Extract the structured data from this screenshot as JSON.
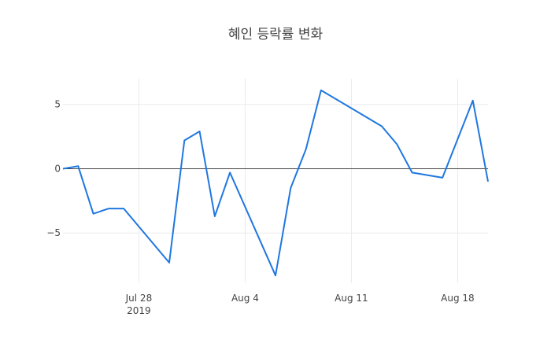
{
  "chart_data": {
    "type": "line",
    "title": "혜인 등락률 변화",
    "xlabel": "",
    "ylabel": "",
    "xlim": [
      "2019-07-23",
      "2019-08-20"
    ],
    "ylim": [
      -8.9,
      7
    ],
    "grid": true,
    "zero_line": true,
    "line_color": "#1f77e0",
    "x_ticks": [
      {
        "date": "2019-07-28",
        "label": "Jul 28",
        "sublabel": "2019"
      },
      {
        "date": "2019-08-04",
        "label": "Aug 4",
        "sublabel": ""
      },
      {
        "date": "2019-08-11",
        "label": "Aug 11",
        "sublabel": ""
      },
      {
        "date": "2019-08-18",
        "label": "Aug 18",
        "sublabel": ""
      }
    ],
    "y_ticks": [
      {
        "value": 5,
        "label": "5"
      },
      {
        "value": 0,
        "label": "0"
      },
      {
        "value": -5,
        "label": "−5"
      }
    ],
    "series": [
      {
        "x": [
          "2019-07-23",
          "2019-07-24",
          "2019-07-25",
          "2019-07-26",
          "2019-07-27",
          "2019-07-30",
          "2019-07-31",
          "2019-08-01",
          "2019-08-02",
          "2019-08-03",
          "2019-08-06",
          "2019-08-07",
          "2019-08-08",
          "2019-08-09",
          "2019-08-13",
          "2019-08-14",
          "2019-08-15",
          "2019-08-17",
          "2019-08-19",
          "2019-08-20"
        ],
        "y": [
          0.0,
          0.2,
          -3.5,
          -3.1,
          -3.1,
          -7.3,
          2.2,
          2.9,
          -3.7,
          -0.3,
          -8.3,
          -1.5,
          1.5,
          6.1,
          3.3,
          1.9,
          -0.3,
          -0.7,
          5.3,
          -1.0
        ]
      }
    ]
  }
}
